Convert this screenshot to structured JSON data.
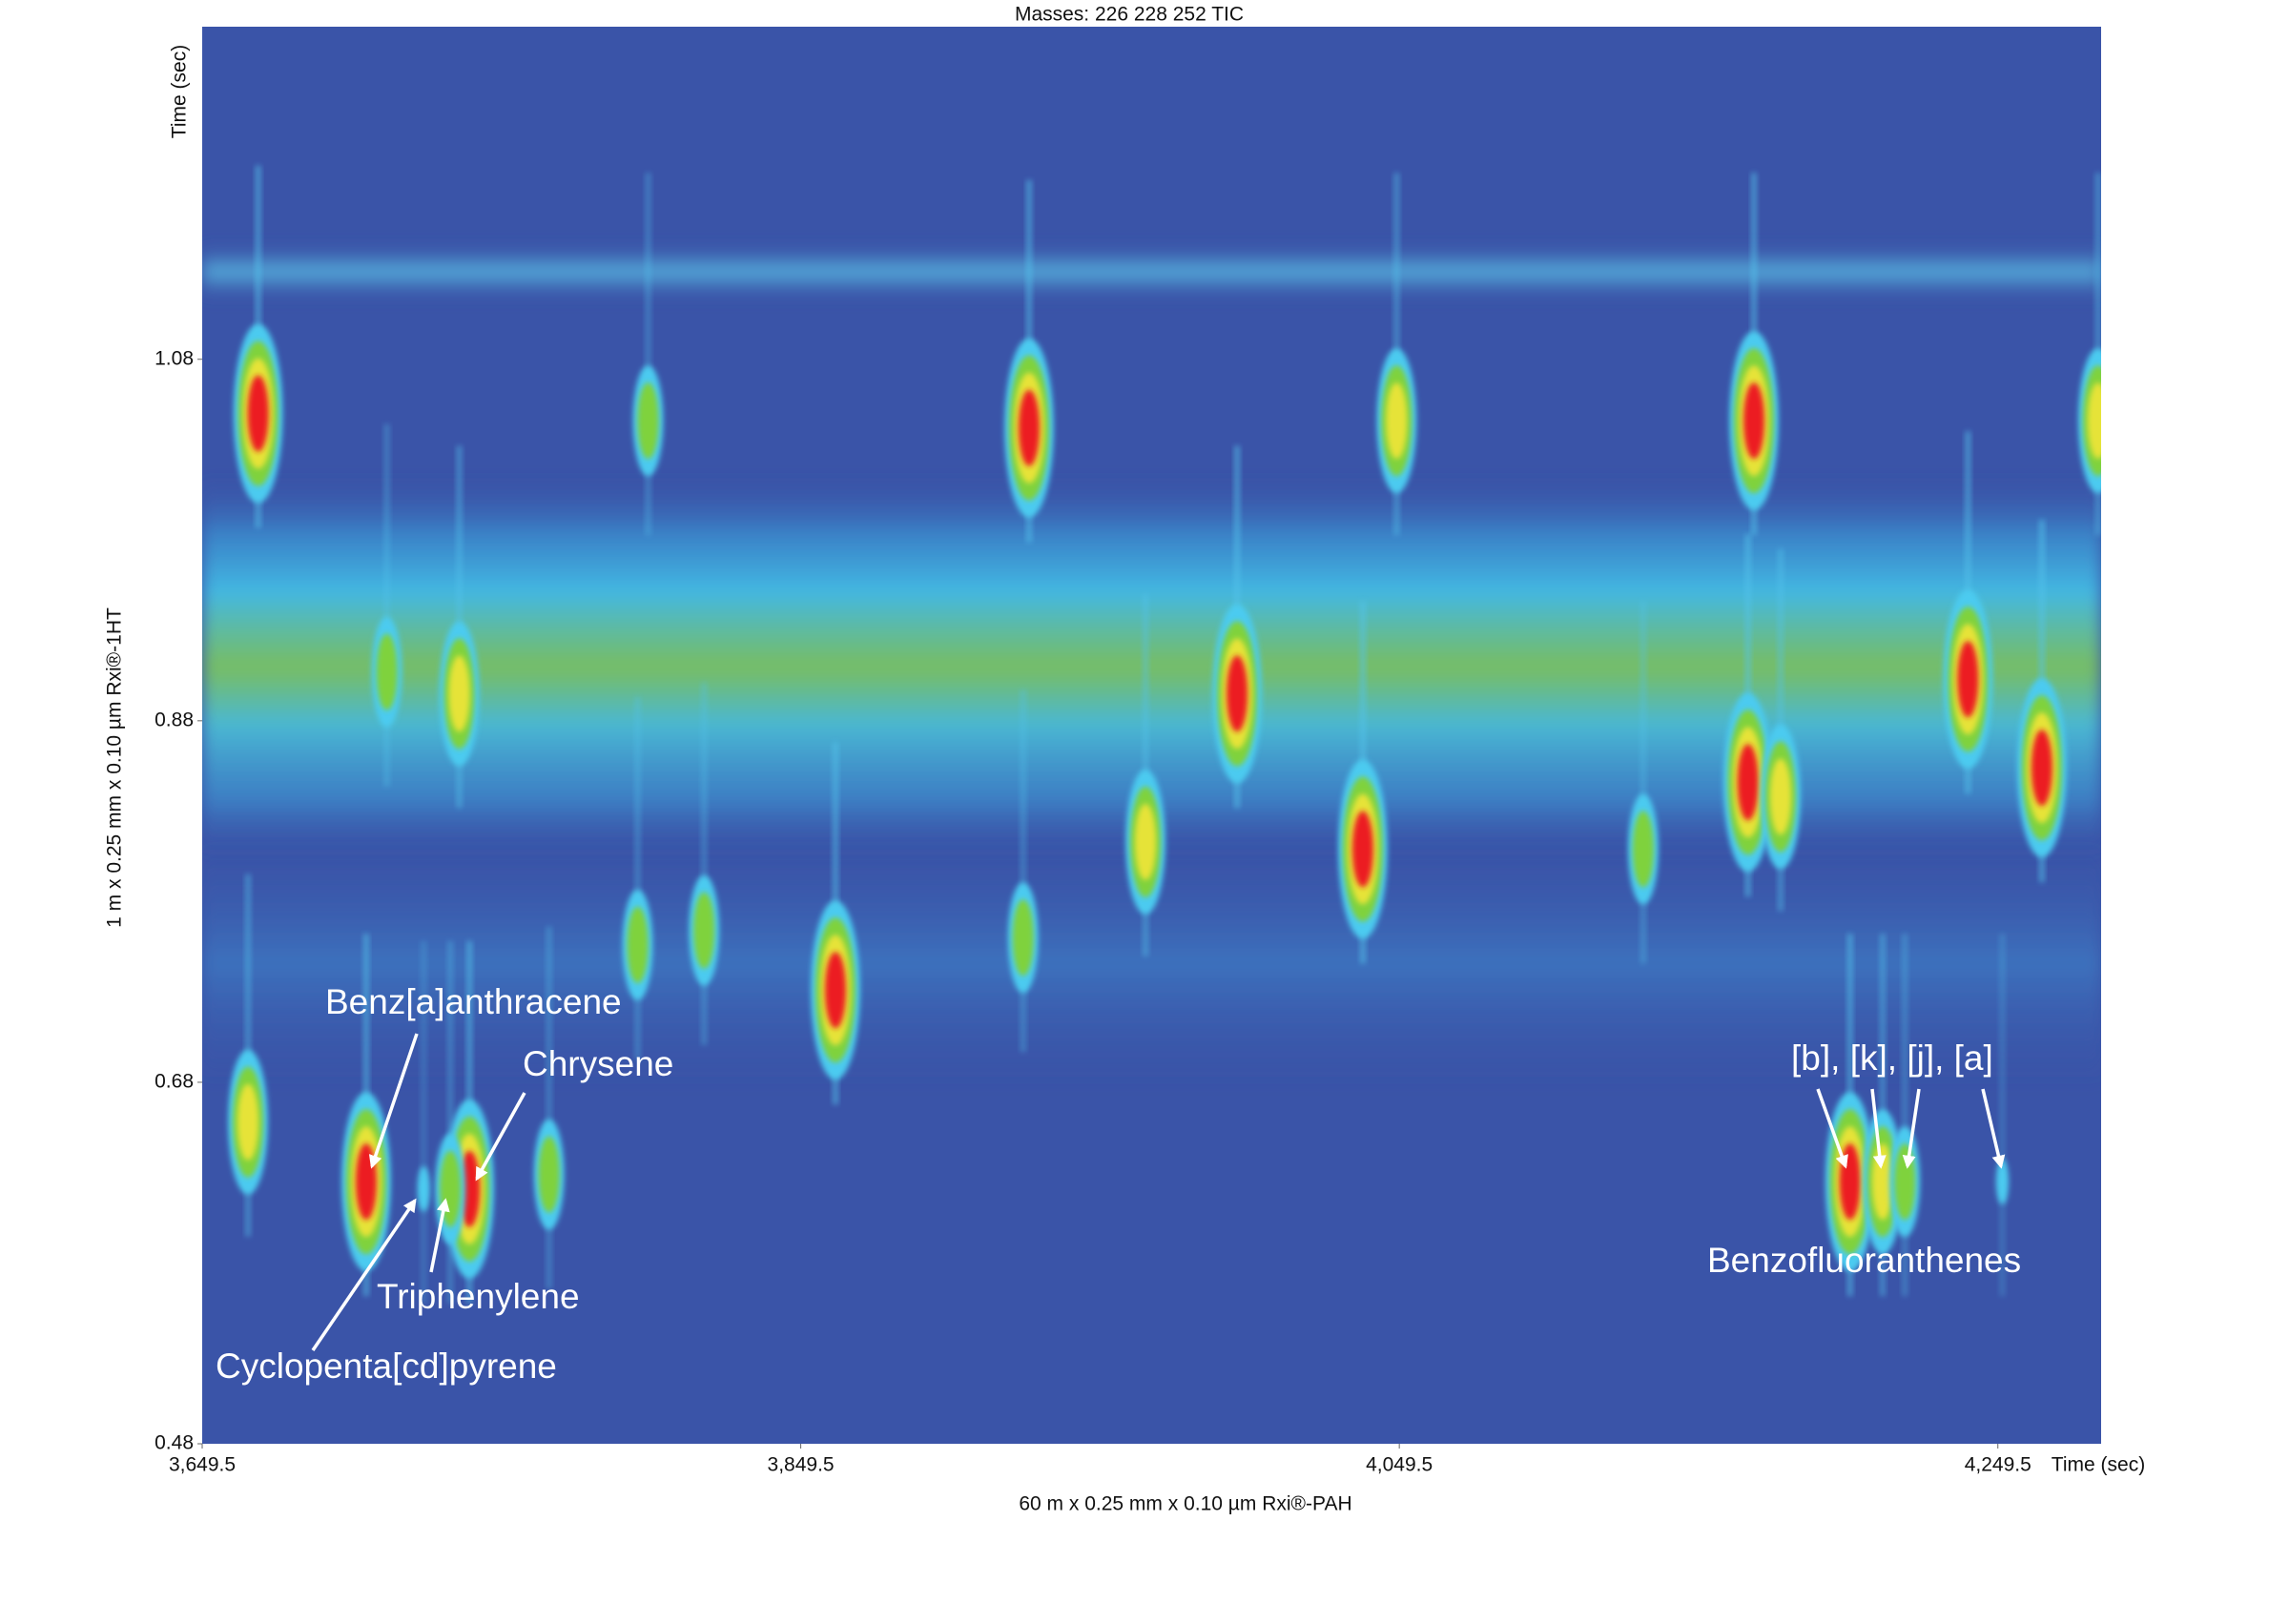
{
  "chart_data": {
    "type": "contour",
    "title": "Masses: 226 228 252 TIC",
    "x_label": "60 m x 0.25 mm x 0.10 µm Rxi®-PAH",
    "x_unit_label": "Time (sec)",
    "y_label": "1 m x 0.25 mm x 0.10 µm Rxi®-1HT",
    "y_unit_label": "Time (sec)",
    "xlim": [
      3649.5,
      4284.0
    ],
    "ylim": [
      0.48,
      1.264
    ],
    "xticks": [
      {
        "value": 3649.5,
        "label": "3,649.5"
      },
      {
        "value": 3849.5,
        "label": "3,849.5"
      },
      {
        "value": 4049.5,
        "label": "4,049.5"
      },
      {
        "value": 4249.5,
        "label": "4,249.5"
      }
    ],
    "yticks": [
      0.48,
      0.68,
      0.88,
      1.08
    ],
    "grid": false,
    "background_color": "#3a54a8",
    "peaks": {
      "x": [
        3668.2,
        3925.8,
        4048.6,
        4168.0,
        4283.0,
        3798.5,
        3995.3,
        4239.5,
        4264.2,
        4166.0,
        4176.9,
        4037.3,
        3964.7,
        3861.1,
        3704.3,
        3738.8,
        3732.4,
        3723.5,
        4200.1,
        4211.0,
        4218.4,
        4251.0,
        3664.8,
        3711.2,
        3735.4,
        3765.4,
        3795.0,
        3817.2,
        3923.8,
        4131.0
      ],
      "y": [
        1.05,
        1.042,
        1.046,
        1.046,
        1.046,
        1.046,
        0.895,
        0.903,
        0.854,
        0.846,
        0.838,
        0.809,
        0.813,
        0.731,
        0.625,
        0.621,
        0.621,
        0.621,
        0.625,
        0.625,
        0.625,
        0.625,
        0.658,
        0.907,
        0.895,
        0.629,
        0.756,
        0.764,
        0.76,
        0.809
      ],
      "colors": [
        "red",
        "red",
        "yellow",
        "red",
        "yellow",
        "green",
        "red",
        "red",
        "red",
        "red",
        "yellow",
        "red",
        "yellow",
        "red",
        "red",
        "red",
        "green",
        "cyan",
        "red",
        "yellow",
        "green",
        "cyan",
        "yellow",
        "green",
        "yellow",
        "green",
        "green",
        "green",
        "green",
        "green"
      ]
    },
    "annotations": [
      {
        "text": "Benz[a]anthracene"
      },
      {
        "text": "Chrysene"
      },
      {
        "text": "Triphenylene"
      },
      {
        "text": "Cyclopenta[cd]pyrene"
      },
      {
        "text": "[b], [k], [j], [a]"
      },
      {
        "text": "Benzofluoranthenes"
      }
    ]
  }
}
